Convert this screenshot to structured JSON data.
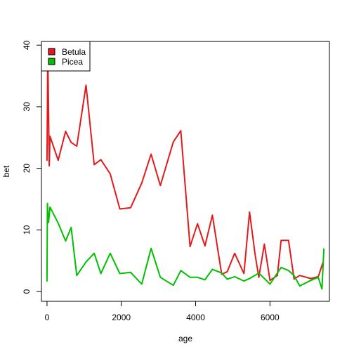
{
  "chart_data": {
    "type": "line",
    "xlabel": "age",
    "ylabel": "bet",
    "xlim": [
      -150,
      7600
    ],
    "ylim": [
      -1.6,
      40.6
    ],
    "x_ticks": [
      0,
      2000,
      4000,
      6000
    ],
    "y_ticks": [
      0,
      10,
      20,
      30,
      40
    ],
    "grid": false,
    "legend_position": "top-left",
    "series": [
      {
        "name": "Betula",
        "color": "#e31a1c",
        "points": [
          [
            0,
            21.3
          ],
          [
            10,
            30.0
          ],
          [
            20,
            39.2
          ],
          [
            40,
            29.5
          ],
          [
            60,
            20.4
          ],
          [
            80,
            25.2
          ],
          [
            300,
            21.3
          ],
          [
            500,
            26.0
          ],
          [
            650,
            24.2
          ],
          [
            800,
            23.6
          ],
          [
            1050,
            33.5
          ],
          [
            1270,
            20.6
          ],
          [
            1450,
            21.4
          ],
          [
            1700,
            19.1
          ],
          [
            1960,
            13.4
          ],
          [
            2250,
            13.6
          ],
          [
            2550,
            17.6
          ],
          [
            2800,
            22.3
          ],
          [
            3050,
            17.2
          ],
          [
            3400,
            24.3
          ],
          [
            3600,
            26.1
          ],
          [
            3850,
            7.3
          ],
          [
            4050,
            11.0
          ],
          [
            4250,
            7.4
          ],
          [
            4450,
            12.4
          ],
          [
            4700,
            2.8
          ],
          [
            4850,
            3.2
          ],
          [
            5050,
            6.2
          ],
          [
            5300,
            2.9
          ],
          [
            5450,
            12.9
          ],
          [
            5600,
            6.0
          ],
          [
            5700,
            2.3
          ],
          [
            5850,
            7.7
          ],
          [
            6000,
            1.8
          ],
          [
            6200,
            2.6
          ],
          [
            6300,
            8.3
          ],
          [
            6500,
            8.3
          ],
          [
            6650,
            2.0
          ],
          [
            6800,
            2.6
          ],
          [
            7100,
            2.1
          ],
          [
            7300,
            2.4
          ],
          [
            7420,
            4.6
          ]
        ]
      },
      {
        "name": "Picea",
        "color": "#00c000",
        "points": [
          [
            0,
            1.7
          ],
          [
            10,
            14.3
          ],
          [
            40,
            11.2
          ],
          [
            80,
            13.7
          ],
          [
            300,
            11.1
          ],
          [
            500,
            8.2
          ],
          [
            650,
            10.4
          ],
          [
            800,
            2.6
          ],
          [
            1050,
            4.8
          ],
          [
            1270,
            6.2
          ],
          [
            1450,
            2.9
          ],
          [
            1700,
            6.2
          ],
          [
            1960,
            2.9
          ],
          [
            2250,
            3.1
          ],
          [
            2550,
            1.2
          ],
          [
            2800,
            7.0
          ],
          [
            3050,
            2.3
          ],
          [
            3400,
            1.0
          ],
          [
            3600,
            3.4
          ],
          [
            3850,
            2.3
          ],
          [
            4050,
            2.3
          ],
          [
            4250,
            1.9
          ],
          [
            4450,
            3.6
          ],
          [
            4700,
            3.0
          ],
          [
            4850,
            2.0
          ],
          [
            5050,
            2.4
          ],
          [
            5300,
            1.7
          ],
          [
            5450,
            2.1
          ],
          [
            5700,
            3.0
          ],
          [
            5850,
            2.1
          ],
          [
            6000,
            1.2
          ],
          [
            6300,
            3.9
          ],
          [
            6500,
            3.4
          ],
          [
            6650,
            2.6
          ],
          [
            6800,
            0.9
          ],
          [
            7100,
            1.8
          ],
          [
            7300,
            2.3
          ],
          [
            7400,
            0.4
          ],
          [
            7450,
            6.9
          ]
        ]
      }
    ]
  }
}
